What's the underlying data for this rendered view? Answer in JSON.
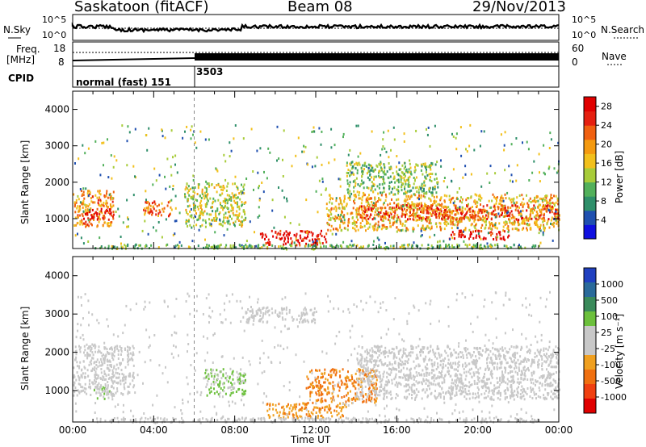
{
  "header": {
    "station": "Saskatoon (fitACF)",
    "beam": "Beam 08",
    "date": "29/Nov/2013"
  },
  "top_panels": {
    "noise": {
      "left_label": "N.Sky",
      "right_label": "N.Search",
      "left_ticks": [
        "10^5",
        "10^0"
      ],
      "right_ticks": [
        "10^5",
        "10^0"
      ]
    },
    "freq": {
      "left_label_1": "Freq.",
      "left_label_2": "[MHz]",
      "right_label": "Nave",
      "left_ticks": [
        "18",
        "8"
      ],
      "right_ticks": [
        "60",
        "0"
      ]
    },
    "cpid": {
      "label": "CPID",
      "modes": [
        {
          "name": "normal (fast) 151",
          "start_hour": 0
        },
        {
          "name": "3503",
          "start_hour": 6
        }
      ]
    }
  },
  "colors": {
    "power": [
      "#1010e0",
      "#2050b0",
      "#2f8f6a",
      "#52b05b",
      "#a8cc3a",
      "#f2c01c",
      "#f49a10",
      "#f06010",
      "#e52010",
      "#e00000"
    ],
    "velocity": [
      "#2040c0",
      "#2a6a9a",
      "#3a8a5a",
      "#6cc03c",
      "#c8c8c8",
      "#c8c8c8",
      "#f0a020",
      "#f07010",
      "#f04010",
      "#e00000"
    ]
  },
  "chart_data": [
    {
      "type": "heatmap",
      "title": "",
      "xlabel": "Time UT",
      "ylabel": "Slant Range [km]",
      "x_ticks": [
        "00:00",
        "04:00",
        "08:00",
        "12:00",
        "16:00",
        "20:00",
        "00:00"
      ],
      "y_ticks": [
        "1000",
        "2000",
        "3000",
        "4000"
      ],
      "xlim": [
        0,
        24
      ],
      "ylim": [
        180,
        4500
      ],
      "colorbar": {
        "label": "Power [dB]",
        "ticks": [
          "4",
          "8",
          "12",
          "16",
          "20",
          "24",
          "28"
        ],
        "range": [
          0,
          30
        ]
      },
      "regions": [
        {
          "t0": 0.0,
          "t1": 2.0,
          "r0": 800,
          "r1": 1800,
          "value": 20
        },
        {
          "t0": 0.5,
          "t1": 2.0,
          "r0": 1000,
          "r1": 1300,
          "value": 28
        },
        {
          "t0": 3.2,
          "t1": 4.8,
          "r0": 1100,
          "r1": 1500,
          "value": 22
        },
        {
          "t0": 5.5,
          "t1": 8.5,
          "r0": 800,
          "r1": 2000,
          "value": 14
        },
        {
          "t0": 9.2,
          "t1": 12.5,
          "r0": 300,
          "r1": 700,
          "value": 28
        },
        {
          "t0": 12.5,
          "t1": 24.0,
          "r0": 700,
          "r1": 1700,
          "value": 18
        },
        {
          "t0": 14.0,
          "t1": 24.0,
          "r0": 1000,
          "r1": 1400,
          "value": 24
        },
        {
          "t0": 18.5,
          "t1": 21.5,
          "r0": 450,
          "r1": 700,
          "value": 28
        },
        {
          "t0": 13.5,
          "t1": 18.0,
          "r0": 1700,
          "r1": 2600,
          "value": 12
        }
      ]
    },
    {
      "type": "heatmap",
      "title": "",
      "xlabel": "Time UT",
      "ylabel": "Slant Range [km]",
      "x_ticks": [
        "00:00",
        "04:00",
        "08:00",
        "12:00",
        "16:00",
        "20:00",
        "00:00"
      ],
      "y_ticks": [
        "1000",
        "2000",
        "3000",
        "4000"
      ],
      "xlim": [
        0,
        24
      ],
      "ylim": [
        180,
        4500
      ],
      "colorbar": {
        "label": "Velocity [m s⁻¹]",
        "ticks": [
          "1000",
          "500",
          "100",
          "25",
          "-25",
          "-100",
          "-500",
          "-1000"
        ],
        "range": [
          -1200,
          1200
        ]
      },
      "regions": [
        {
          "t0": 0.0,
          "t1": 3.0,
          "r0": 900,
          "r1": 2200,
          "value": 0
        },
        {
          "t0": 1.0,
          "t1": 2.0,
          "r0": 800,
          "r1": 1200,
          "value": 150
        },
        {
          "t0": 6.5,
          "t1": 8.5,
          "r0": 900,
          "r1": 1600,
          "value": 300
        },
        {
          "t0": 9.5,
          "t1": 13.5,
          "r0": 300,
          "r1": 700,
          "value": -400
        },
        {
          "t0": 11.5,
          "t1": 15.0,
          "r0": 700,
          "r1": 1600,
          "value": -500
        },
        {
          "t0": 14.0,
          "t1": 24.0,
          "r0": 800,
          "r1": 2200,
          "value": 0
        },
        {
          "t0": 8.5,
          "t1": 12.0,
          "r0": 2800,
          "r1": 3200,
          "value": 0
        }
      ]
    }
  ]
}
